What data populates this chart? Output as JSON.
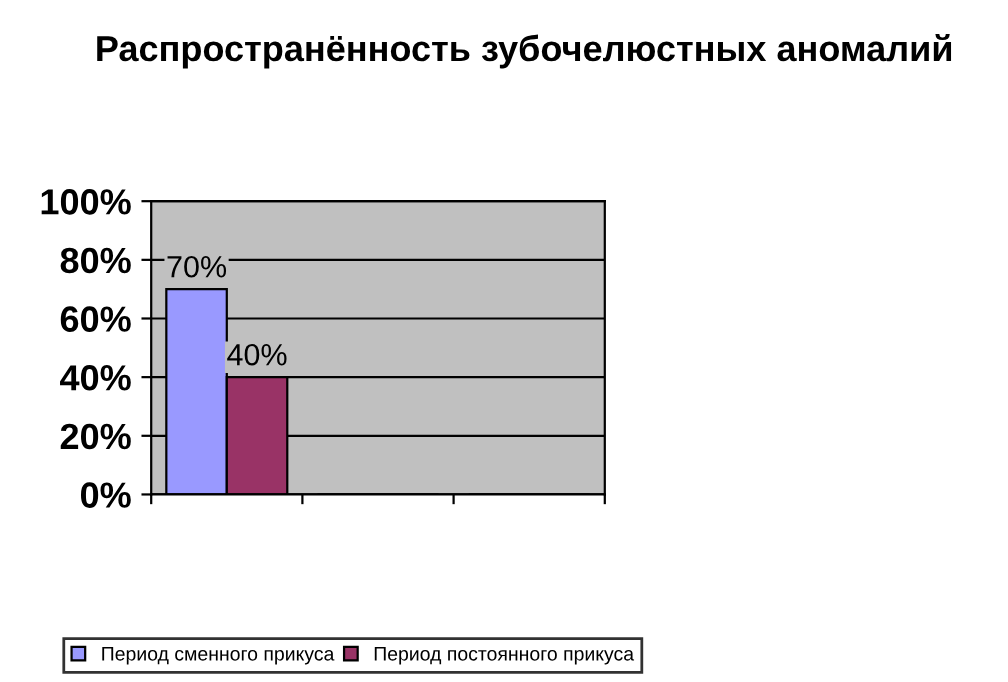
{
  "chart_data": {
    "type": "bar",
    "title": "Распространённость зубочелюстных аномалий",
    "categories": [
      null,
      null,
      null
    ],
    "series": [
      {
        "name": "Период сменного прикуса",
        "color": "#9999ff",
        "values": [
          70,
          null,
          null
        ],
        "value_labels": [
          "70%",
          null,
          null
        ]
      },
      {
        "name": "Период постоянного прикуса",
        "color": "#993366",
        "values": [
          40,
          null,
          null
        ],
        "value_labels": [
          "40%",
          null,
          null
        ]
      }
    ],
    "ylim": [
      0,
      100
    ],
    "yticks": [
      {
        "value": 0,
        "label": "0%"
      },
      {
        "value": 20,
        "label": "20%"
      },
      {
        "value": 40,
        "label": "40%"
      },
      {
        "value": 60,
        "label": "60%"
      },
      {
        "value": 80,
        "label": "80%"
      },
      {
        "value": 100,
        "label": "100%"
      }
    ],
    "grid": "y",
    "legend": "bottom"
  }
}
